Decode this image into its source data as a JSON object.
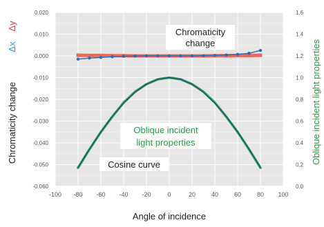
{
  "chart_data": {
    "type": "line",
    "xlabel": "Angle of incidence",
    "ylabel_left_parts": [
      "Chromaticity change",
      "Δx",
      "Δy"
    ],
    "ylabel_right": "Oblique incident light properties",
    "xlim": [
      -100,
      100
    ],
    "ylim_left": [
      -0.06,
      0.02
    ],
    "ylim_right": [
      0.0,
      1.6
    ],
    "x_ticks": [
      "-100",
      "-80",
      "-60",
      "-40",
      "-20",
      "0",
      "20",
      "40",
      "60",
      "80",
      "100"
    ],
    "y_left_ticks": [
      "0.020",
      "0.010",
      "0.000",
      "-0.010",
      "-0.020",
      "-0.030",
      "-0.040",
      "-0.050",
      "-0.060"
    ],
    "y_right_ticks": [
      "1.6",
      "1.4",
      "1.2",
      "1.0",
      "0.8",
      "0.6",
      "0.4",
      "0.2",
      "0.0"
    ],
    "grid": true,
    "annotations": {
      "chromaticity": [
        "Chromaticity",
        "change"
      ],
      "oblique": [
        "Oblique incident",
        "light properties"
      ],
      "cosine": "Cosine curve"
    },
    "colors": {
      "background": "#e6e6e6",
      "grid": "#ffffff",
      "dx": "#2a6db5",
      "dy": "#e86a5a",
      "oblique": "#3aa35a",
      "cosine": "#1f4f86",
      "axis_text": "#555555",
      "green_text": "#2a9d4a",
      "blue_text": "#2a9fd6",
      "red_text": "#d9415a"
    },
    "series": [
      {
        "key": "dx",
        "axis": "left",
        "x": [
          -80,
          -70,
          -60,
          -50,
          -40,
          -30,
          -20,
          -10,
          0,
          10,
          20,
          30,
          40,
          50,
          60,
          70,
          80
        ],
        "values": [
          -0.0015,
          -0.001,
          -0.0007,
          -0.0004,
          -0.0002,
          -0.0001,
          0,
          0,
          0,
          0,
          0,
          0.0001,
          0.0002,
          0.0004,
          0.0007,
          0.0012,
          0.0025
        ]
      },
      {
        "key": "dy",
        "axis": "left",
        "x": [
          -80,
          -70,
          -60,
          -50,
          -40,
          -30,
          -20,
          -10,
          0,
          10,
          20,
          30,
          40,
          50,
          60,
          70,
          80
        ],
        "values": [
          0.0003,
          0.0002,
          0.0002,
          0.0001,
          0.0001,
          0,
          0,
          0,
          0,
          0,
          0,
          0,
          0.0001,
          0.0001,
          0.0002,
          0.0002,
          0.0003
        ]
      },
      {
        "key": "oblique",
        "axis": "right",
        "x": [
          -80,
          -70,
          -60,
          -50,
          -40,
          -30,
          -20,
          -10,
          0,
          10,
          20,
          30,
          40,
          50,
          60,
          70,
          80
        ],
        "values": [
          0.17,
          0.34,
          0.5,
          0.64,
          0.77,
          0.87,
          0.94,
          0.985,
          1.0,
          0.985,
          0.94,
          0.87,
          0.77,
          0.64,
          0.5,
          0.34,
          0.17
        ]
      },
      {
        "key": "cosine",
        "axis": "right",
        "x": [
          -80,
          -70,
          -60,
          -50,
          -40,
          -30,
          -20,
          -10,
          0,
          10,
          20,
          30,
          40,
          50,
          60,
          70,
          80
        ],
        "values": [
          0.174,
          0.342,
          0.5,
          0.643,
          0.766,
          0.866,
          0.94,
          0.985,
          1.0,
          0.985,
          0.94,
          0.866,
          0.766,
          0.643,
          0.5,
          0.342,
          0.174
        ]
      }
    ]
  }
}
